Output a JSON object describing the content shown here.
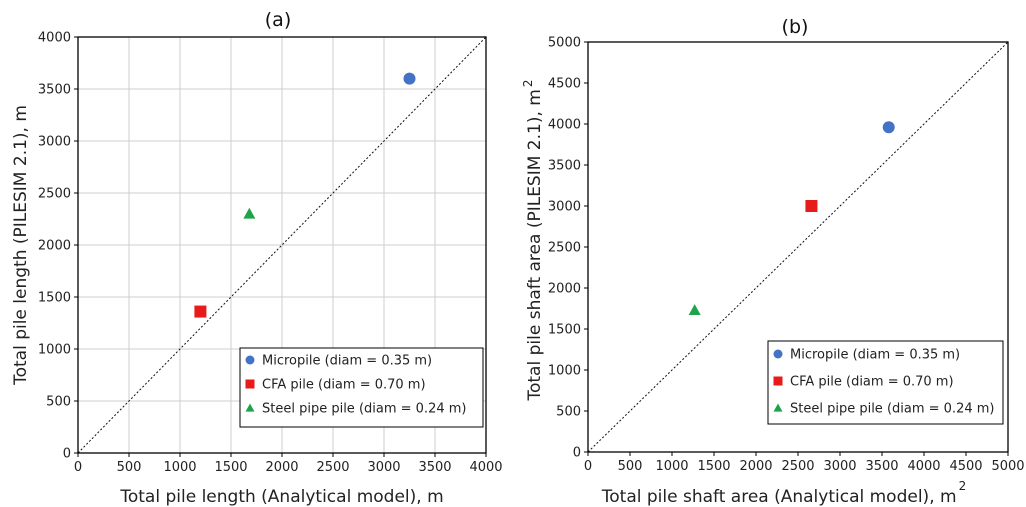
{
  "chart_data": [
    {
      "type": "scatter",
      "title": "(a)",
      "xlabel": "Total pile length (Analytical model), m",
      "ylabel": "Total pile length (PILESIM 2.1), m",
      "xlim": [
        0,
        4000
      ],
      "ylim": [
        0,
        4000
      ],
      "ticks": [
        "0",
        "500",
        "1000",
        "1500",
        "2000",
        "2500",
        "3000",
        "3500",
        "4000"
      ],
      "grid": true,
      "reference_line": "1:1 dashed",
      "legend_position": "bottom-right",
      "series": [
        {
          "name": "Micropile (diam = 0.35 m)",
          "marker": "circle",
          "color": "#4472C4",
          "x": [
            3250
          ],
          "y": [
            3600
          ]
        },
        {
          "name": "CFA pile (diam = 0.70 m)",
          "marker": "square",
          "color": "#E81B1B",
          "x": [
            1200
          ],
          "y": [
            1360
          ]
        },
        {
          "name": "Steel pipe pile (diam = 0.24 m)",
          "marker": "triangle",
          "color": "#1FA34A",
          "x": [
            1680
          ],
          "y": [
            2300
          ]
        }
      ]
    },
    {
      "type": "scatter",
      "title": "(b)",
      "xlabel": "Total pile shaft area (Analytical model), m",
      "xlabel_sup": "2",
      "ylabel": "Total pile shaft area (PILESIM 2.1), m",
      "ylabel_sup": "2",
      "xlim": [
        0,
        5000
      ],
      "ylim": [
        0,
        5000
      ],
      "ticks": [
        "0",
        "500",
        "1000",
        "1500",
        "2000",
        "2500",
        "3000",
        "3500",
        "4000",
        "4500",
        "5000"
      ],
      "grid": false,
      "reference_line": "1:1 dashed",
      "legend_position": "bottom-right",
      "series": [
        {
          "name": "Micropile (diam = 0.35 m)",
          "marker": "circle",
          "color": "#4472C4",
          "x": [
            3580
          ],
          "y": [
            3960
          ]
        },
        {
          "name": "CFA pile (diam = 0.70 m)",
          "marker": "square",
          "color": "#E81B1B",
          "x": [
            2660
          ],
          "y": [
            3000
          ]
        },
        {
          "name": "Steel pipe pile (diam = 0.24 m)",
          "marker": "triangle",
          "color": "#1FA34A",
          "x": [
            1270
          ],
          "y": [
            1730
          ]
        }
      ]
    }
  ]
}
